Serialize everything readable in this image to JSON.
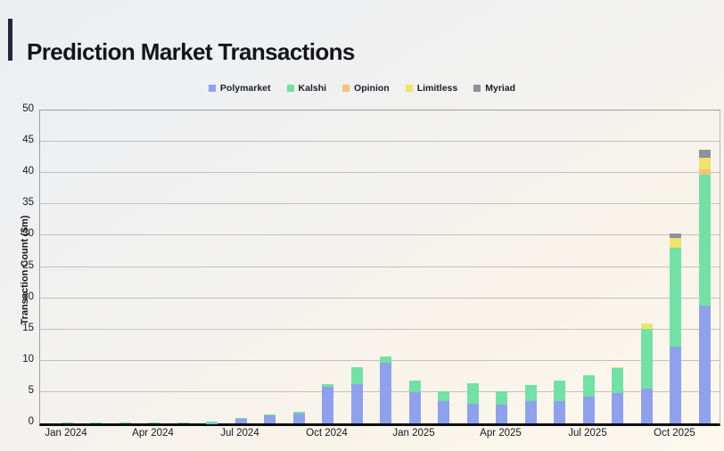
{
  "header": {
    "title": "Prediction Market Transactions"
  },
  "chart_data": {
    "type": "bar",
    "stacked": true,
    "title": "Prediction Market Transactions",
    "ylabel": "Transaction Count ($m)",
    "xlabel": "",
    "ylim": [
      0,
      50
    ],
    "ytick_step": 5,
    "grid": true,
    "legend_position": "top",
    "x": [
      "Jan 2024",
      "Feb 2024",
      "Mar 2024",
      "Apr 2024",
      "May 2024",
      "Jun 2024",
      "Jul 2024",
      "Aug 2024",
      "Sep 2024",
      "Oct 2024",
      "Nov 2024",
      "Dec 2024",
      "Jan 2025",
      "Feb 2025",
      "Mar 2025",
      "Apr 2025",
      "May 2025",
      "Jun 2025",
      "Jul 2025",
      "Aug 2025",
      "Sep 2025",
      "Oct 2025",
      "Nov 2025"
    ],
    "xticks_shown": [
      "Jan 2024",
      "Apr 2024",
      "Jul 2024",
      "Oct 2024",
      "Jan 2025",
      "Apr 2025",
      "Jul 2025",
      "Oct 2025"
    ],
    "series": [
      {
        "name": "Polymarket",
        "color": "#8FA1EC",
        "values": [
          0,
          0,
          0,
          0,
          0,
          0.05,
          0.75,
          1.25,
          1.6,
          5.8,
          6.3,
          9.7,
          5.0,
          3.5,
          3.2,
          3.0,
          3.5,
          3.6,
          4.3,
          4.9,
          5.5,
          12.2,
          18.8
        ]
      },
      {
        "name": "Kalshi",
        "color": "#73E0A5",
        "values": [
          0.15,
          0.15,
          0.15,
          0.2,
          0.2,
          0.3,
          0.15,
          0.2,
          0.2,
          0.5,
          2.7,
          1.0,
          1.8,
          1.6,
          3.2,
          2.2,
          2.6,
          3.3,
          3.4,
          3.9,
          9.6,
          15.9,
          20.9
        ]
      },
      {
        "name": "Opinion",
        "color": "#F4C377",
        "values": [
          0,
          0,
          0,
          0,
          0,
          0,
          0,
          0,
          0,
          0,
          0,
          0,
          0,
          0,
          0,
          0,
          0,
          0,
          0,
          0,
          0,
          0,
          0.9
        ]
      },
      {
        "name": "Limitless",
        "color": "#EFE26D",
        "values": [
          0,
          0,
          0,
          0,
          0,
          0,
          0,
          0,
          0,
          0,
          0,
          0,
          0,
          0,
          0,
          0,
          0,
          0,
          0,
          0.15,
          0.9,
          1.6,
          1.8
        ]
      },
      {
        "name": "Myriad",
        "color": "#8D929B",
        "values": [
          0,
          0,
          0,
          0,
          0,
          0,
          0,
          0,
          0,
          0,
          0,
          0,
          0,
          0,
          0,
          0,
          0,
          0,
          0,
          0,
          0,
          0.7,
          1.3
        ]
      }
    ]
  }
}
